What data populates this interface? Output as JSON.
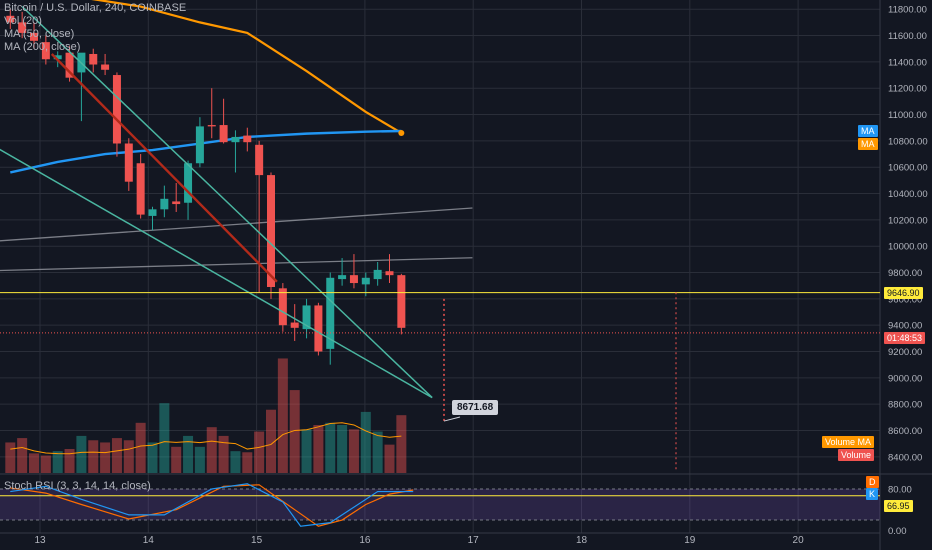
{
  "legend": {
    "symbol": "Bitcoin / U.S. Dollar, 240, COINBASE",
    "vol": "Vol (20)",
    "ma50": "MA (50, close)",
    "ma200": "MA (200, close)"
  },
  "stoch": {
    "label": "Stoch RSI (3, 3, 14, 14, close)",
    "ticks": [
      "80.00",
      "0.00"
    ],
    "value": "66.95",
    "d_badge": "D",
    "k_badge": "K"
  },
  "badges": {
    "ma1": "MA",
    "ma2": "MA",
    "price": "9646.90",
    "countdown": "01:48:53",
    "volume_ma": "Volume MA",
    "volume": "Volume"
  },
  "callout": "8671.68",
  "colors": {
    "background": "#131722",
    "up": "#26a69a",
    "down": "#ef5350",
    "ma50": "#2196f3",
    "ma200": "#ff9800",
    "trend": "#4ab5a0",
    "red_trend": "#b22a1a",
    "hline": "#ffeb3b",
    "stoch_k": "#2196f3",
    "stoch_d": "#ff6d00"
  },
  "chart_data": {
    "type": "candlestick",
    "x_ticks": [
      "13",
      "14",
      "15",
      "16",
      "17",
      "18",
      "19",
      "20"
    ],
    "y_ticks": [
      "11800.00",
      "11600.00",
      "11400.00",
      "11200.00",
      "11000.00",
      "10800.00",
      "10600.00",
      "10400.00",
      "10200.00",
      "10000.00",
      "9800.00",
      "9600.00",
      "9400.00",
      "9200.00",
      "9000.00",
      "8800.00",
      "8600.00",
      "8400.00"
    ],
    "ylim": [
      8300,
      11870
    ],
    "candles": [
      {
        "o": 11750,
        "h": 11800,
        "l": 11650,
        "c": 11700
      },
      {
        "o": 11700,
        "h": 11780,
        "l": 11580,
        "c": 11620
      },
      {
        "o": 11620,
        "h": 11700,
        "l": 11500,
        "c": 11560
      },
      {
        "o": 11550,
        "h": 11600,
        "l": 11380,
        "c": 11420
      },
      {
        "o": 11420,
        "h": 11480,
        "l": 11360,
        "c": 11450
      },
      {
        "o": 11470,
        "h": 11520,
        "l": 11250,
        "c": 11280
      },
      {
        "o": 11320,
        "h": 11450,
        "l": 10950,
        "c": 11470
      },
      {
        "o": 11460,
        "h": 11500,
        "l": 11320,
        "c": 11380
      },
      {
        "o": 11380,
        "h": 11460,
        "l": 11300,
        "c": 11340
      },
      {
        "o": 11300,
        "h": 11320,
        "l": 10680,
        "c": 10780
      },
      {
        "o": 10780,
        "h": 10820,
        "l": 10420,
        "c": 10490
      },
      {
        "o": 10630,
        "h": 10700,
        "l": 10210,
        "c": 10240
      },
      {
        "o": 10230,
        "h": 10300,
        "l": 10120,
        "c": 10280
      },
      {
        "o": 10280,
        "h": 10460,
        "l": 10220,
        "c": 10360
      },
      {
        "o": 10340,
        "h": 10480,
        "l": 10260,
        "c": 10320
      },
      {
        "o": 10330,
        "h": 10650,
        "l": 10200,
        "c": 10630
      },
      {
        "o": 10630,
        "h": 10980,
        "l": 10600,
        "c": 10910
      },
      {
        "o": 10920,
        "h": 11200,
        "l": 10820,
        "c": 10910
      },
      {
        "o": 10920,
        "h": 11120,
        "l": 10780,
        "c": 10790
      },
      {
        "o": 10790,
        "h": 10880,
        "l": 10560,
        "c": 10830
      },
      {
        "o": 10840,
        "h": 10900,
        "l": 10720,
        "c": 10790
      },
      {
        "o": 10770,
        "h": 10800,
        "l": 9650,
        "c": 10540
      },
      {
        "o": 10540,
        "h": 10560,
        "l": 9600,
        "c": 9690
      },
      {
        "o": 9680,
        "h": 9720,
        "l": 9350,
        "c": 9400
      },
      {
        "o": 9420,
        "h": 9560,
        "l": 9280,
        "c": 9380
      },
      {
        "o": 9370,
        "h": 9600,
        "l": 9300,
        "c": 9550
      },
      {
        "o": 9550,
        "h": 9570,
        "l": 9170,
        "c": 9200
      },
      {
        "o": 9220,
        "h": 9800,
        "l": 9100,
        "c": 9760
      },
      {
        "o": 9750,
        "h": 9910,
        "l": 9700,
        "c": 9780
      },
      {
        "o": 9780,
        "h": 9940,
        "l": 9680,
        "c": 9720
      },
      {
        "o": 9710,
        "h": 9800,
        "l": 9620,
        "c": 9760
      },
      {
        "o": 9750,
        "h": 9880,
        "l": 9700,
        "c": 9820
      },
      {
        "o": 9810,
        "h": 9940,
        "l": 9720,
        "c": 9780
      },
      {
        "o": 9780,
        "h": 9790,
        "l": 9330,
        "c": 9380
      }
    ],
    "volume": [
      140,
      160,
      90,
      80,
      100,
      110,
      170,
      150,
      140,
      160,
      150,
      230,
      140,
      320,
      120,
      170,
      120,
      210,
      170,
      100,
      95,
      190,
      290,
      525,
      380,
      200,
      220,
      230,
      220,
      200,
      280,
      190,
      130,
      265
    ],
    "callout_value": 8671.68,
    "price_line": 9646.9,
    "current_price": 9341.5,
    "ma50": [
      [
        0,
        10560
      ],
      [
        4,
        10640
      ],
      [
        8,
        10700
      ],
      [
        12,
        10730
      ],
      [
        16,
        10780
      ],
      [
        20,
        10830
      ],
      [
        25,
        10855
      ],
      [
        30,
        10870
      ],
      [
        33,
        10875
      ]
    ],
    "ma200": [
      [
        0,
        11960
      ],
      [
        6,
        11890
      ],
      [
        11,
        11820
      ],
      [
        16,
        11700
      ],
      [
        20,
        11620
      ],
      [
        25,
        11330
      ],
      [
        30,
        11020
      ],
      [
        33,
        10860
      ]
    ],
    "grey_lines": [
      [
        [
          -1,
          9815
        ],
        [
          39,
          9912
        ]
      ],
      [
        [
          -1,
          10040
        ],
        [
          39,
          10290
        ]
      ]
    ],
    "teal_lines": [
      [
        [
          1,
          11820
        ],
        [
          35.6,
          8850
        ]
      ],
      [
        [
          -1,
          10740
        ],
        [
          35.6,
          8850
        ]
      ]
    ],
    "red_trend": [
      [
        3.5,
        11460
      ],
      [
        22.5,
        9730
      ]
    ],
    "stoch_k": [
      [
        0,
        75
      ],
      [
        3,
        85
      ],
      [
        6,
        60
      ],
      [
        10,
        30
      ],
      [
        13,
        30
      ],
      [
        17,
        80
      ],
      [
        20,
        90
      ],
      [
        23,
        55
      ],
      [
        24.5,
        8
      ],
      [
        27,
        15
      ],
      [
        29,
        45
      ],
      [
        31,
        75
      ],
      [
        34,
        75
      ]
    ],
    "stoch_d": [
      [
        0,
        82
      ],
      [
        3,
        72
      ],
      [
        6,
        50
      ],
      [
        10,
        22
      ],
      [
        14,
        40
      ],
      [
        18,
        85
      ],
      [
        21,
        88
      ],
      [
        24,
        40
      ],
      [
        26,
        8
      ],
      [
        28,
        20
      ],
      [
        30,
        50
      ],
      [
        32,
        70
      ],
      [
        34,
        78
      ]
    ],
    "stoch_ylim": [
      -5,
      105
    ]
  }
}
